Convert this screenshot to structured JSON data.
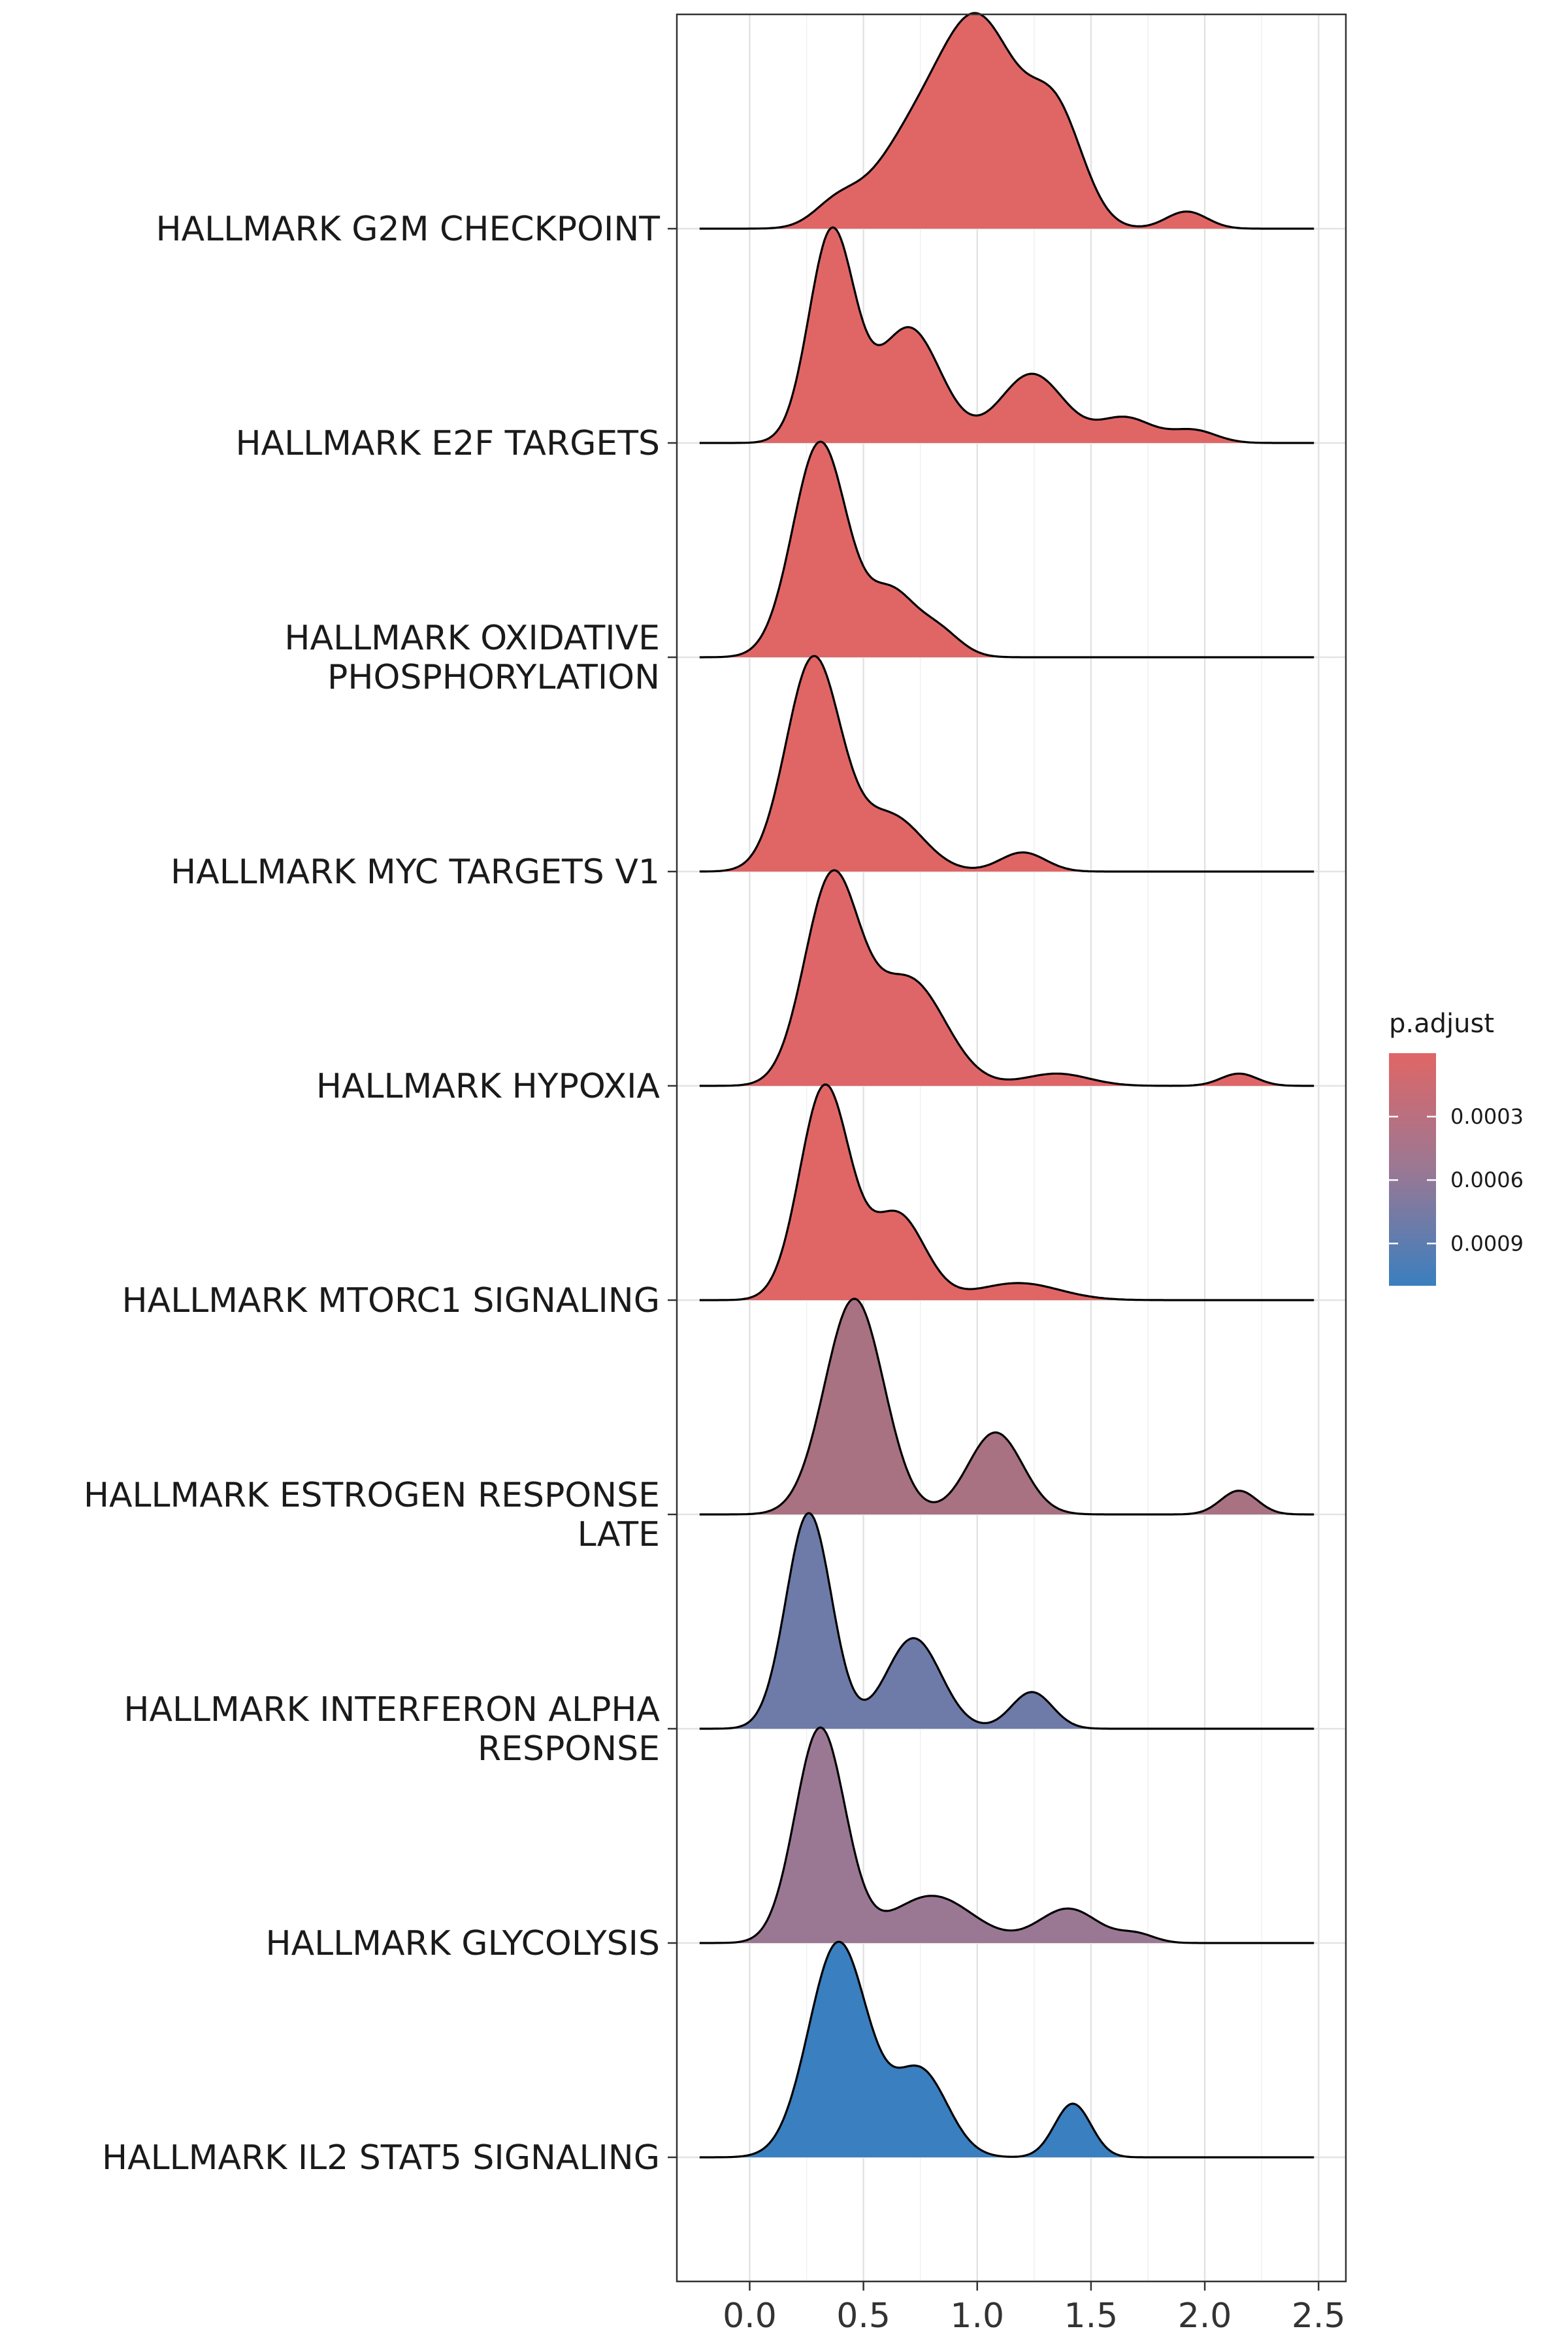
{
  "chart_data": {
    "type": "ridgeline",
    "xlim": [
      -0.32,
      2.62
    ],
    "x_ticks": [
      0.0,
      0.5,
      1.0,
      1.5,
      2.0,
      2.5
    ],
    "x_tick_labels": [
      "0.0",
      "0.5",
      "1.0",
      "1.5",
      "2.0",
      "2.5"
    ],
    "xlabel": "",
    "ylabel": "",
    "grid": true,
    "legend": {
      "title": "p.adjust",
      "placement": "right",
      "type": "colorbar",
      "range": [
        0.0,
        0.0011
      ],
      "ticks": [
        0.0003,
        0.0006,
        0.0009
      ],
      "tick_labels": [
        "0.0003",
        "0.0006",
        "0.0009"
      ],
      "low_color": "#E06666",
      "high_color": "#3A7FBF"
    },
    "series": [
      {
        "name": "HALLMARK G2M CHECKPOINT",
        "label_lines": [
          "HALLMARK G2M CHECKPOINT"
        ],
        "p_adjust": 1e-05,
        "color": "#E06666",
        "peaks": [
          [
            0.38,
            0.1,
            0.11
          ],
          [
            0.72,
            0.18,
            0.44
          ],
          [
            1.02,
            0.17,
            1.0
          ],
          [
            1.35,
            0.12,
            0.55
          ],
          [
            1.92,
            0.09,
            0.09
          ]
        ]
      },
      {
        "name": "HALLMARK E2F TARGETS",
        "label_lines": [
          "HALLMARK E2F TARGETS"
        ],
        "p_adjust": 1e-05,
        "color": "#E06666",
        "peaks": [
          [
            0.36,
            0.1,
            1.0
          ],
          [
            0.7,
            0.14,
            0.55
          ],
          [
            1.24,
            0.14,
            0.33
          ],
          [
            1.65,
            0.12,
            0.12
          ],
          [
            1.95,
            0.1,
            0.06
          ]
        ]
      },
      {
        "name": "HALLMARK OXIDATIVE PHOSPHORYLATION",
        "label_lines": [
          "HALLMARK OXIDATIVE",
          "PHOSPHORYLATION"
        ],
        "p_adjust": 1e-05,
        "color": "#E06666",
        "peaks": [
          [
            0.31,
            0.12,
            1.0
          ],
          [
            0.62,
            0.1,
            0.28
          ],
          [
            0.82,
            0.1,
            0.13
          ]
        ]
      },
      {
        "name": "HALLMARK MYC TARGETS V1",
        "label_lines": [
          "HALLMARK MYC TARGETS V1"
        ],
        "p_adjust": 1e-05,
        "color": "#E06666",
        "peaks": [
          [
            0.28,
            0.12,
            1.0
          ],
          [
            0.62,
            0.14,
            0.26
          ],
          [
            1.2,
            0.1,
            0.09
          ]
        ]
      },
      {
        "name": "HALLMARK HYPOXIA",
        "label_lines": [
          "HALLMARK HYPOXIA"
        ],
        "p_adjust": 5e-05,
        "color": "#DF6668",
        "peaks": [
          [
            0.36,
            0.12,
            1.0
          ],
          [
            0.7,
            0.16,
            0.52
          ],
          [
            1.35,
            0.14,
            0.06
          ],
          [
            2.15,
            0.08,
            0.06
          ]
        ]
      },
      {
        "name": "HALLMARK MTORC1 SIGNALING",
        "label_lines": [
          "HALLMARK MTORC1 SIGNALING"
        ],
        "p_adjust": 1e-05,
        "color": "#E06666",
        "peaks": [
          [
            0.33,
            0.11,
            1.0
          ],
          [
            0.65,
            0.12,
            0.4
          ],
          [
            1.18,
            0.18,
            0.08
          ]
        ]
      },
      {
        "name": "HALLMARK ESTROGEN RESPONSE LATE",
        "label_lines": [
          "HALLMARK ESTROGEN RESPONSE",
          "LATE"
        ],
        "p_adjust": 0.00045,
        "color": "#A87283",
        "peaks": [
          [
            0.46,
            0.13,
            1.0
          ],
          [
            1.08,
            0.12,
            0.38
          ],
          [
            2.15,
            0.08,
            0.11
          ]
        ]
      },
      {
        "name": "HALLMARK INTERFERON ALPHA RESPONSE",
        "label_lines": [
          "HALLMARK INTERFERON ALPHA",
          "RESPONSE"
        ],
        "p_adjust": 0.00085,
        "color": "#6E7BA8",
        "peaks": [
          [
            0.26,
            0.1,
            1.0
          ],
          [
            0.72,
            0.12,
            0.42
          ],
          [
            1.24,
            0.09,
            0.17
          ]
        ]
      },
      {
        "name": "HALLMARK GLYCOLYSIS",
        "label_lines": [
          "HALLMARK GLYCOLYSIS"
        ],
        "p_adjust": 0.0006,
        "color": "#9A7894",
        "peaks": [
          [
            0.31,
            0.11,
            1.0
          ],
          [
            0.8,
            0.18,
            0.22
          ],
          [
            1.4,
            0.13,
            0.16
          ],
          [
            1.7,
            0.08,
            0.04
          ]
        ]
      },
      {
        "name": "HALLMARK IL2 STAT5 SIGNALING",
        "label_lines": [
          "HALLMARK IL2 STAT5 SIGNALING"
        ],
        "p_adjust": 0.0011,
        "color": "#3A7FBF",
        "peaks": [
          [
            0.39,
            0.13,
            1.0
          ],
          [
            0.75,
            0.12,
            0.4
          ],
          [
            1.42,
            0.08,
            0.25
          ]
        ]
      }
    ]
  }
}
